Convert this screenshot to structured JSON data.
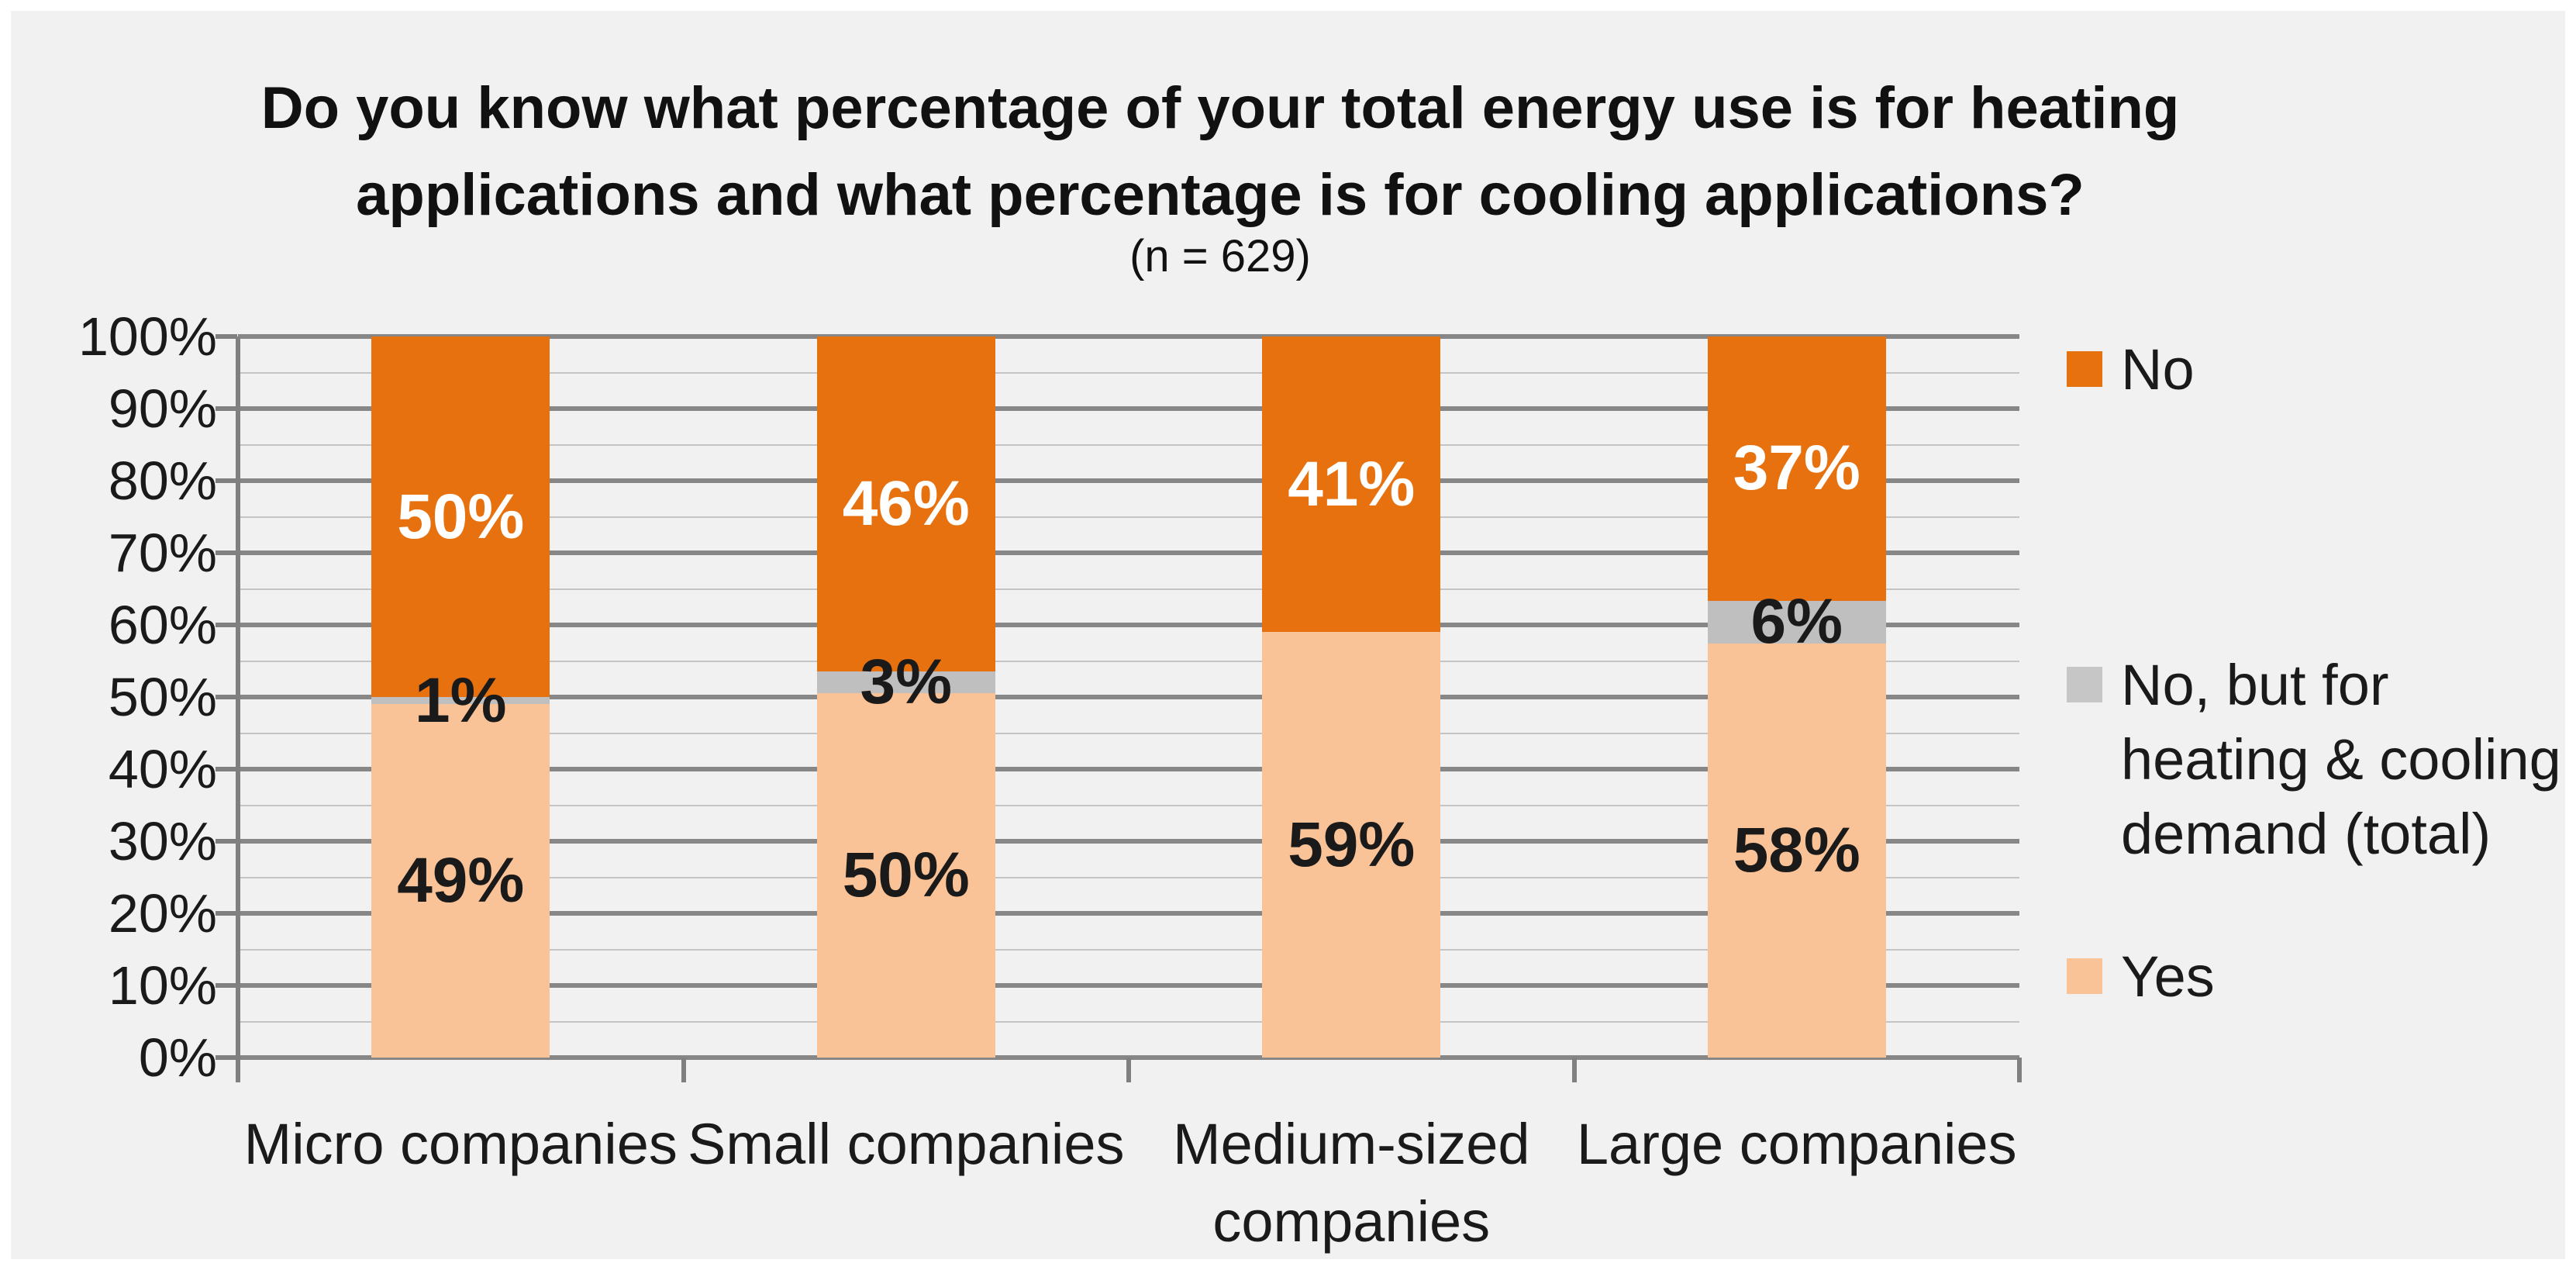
{
  "header": {
    "title_lines": [
      "Do you know what percentage of your total energy use is for heating",
      "applications and what percentage is for cooling applications?"
    ],
    "subtitle": "(n = 629)"
  },
  "chart_data": {
    "type": "bar",
    "stacked": true,
    "units": "percent",
    "title": "Do you know what percentage of your total energy use is for heating applications and what percentage is for cooling applications?",
    "subtitle": "(n = 629)",
    "n": 629,
    "categories": [
      "Micro companies",
      "Small companies",
      "Medium-sized companies",
      "Large companies"
    ],
    "series": [
      {
        "name": "Yes",
        "color": "#FAC397",
        "label_color": "#1a1a1a",
        "values": [
          49,
          50,
          59,
          58
        ]
      },
      {
        "name": "No, but for heating & cooling demand (total)",
        "color": "#BFBFBF",
        "label_color": "#1a1a1a",
        "values": [
          1,
          3,
          0,
          6
        ]
      },
      {
        "name": "No",
        "color": "#E8710F",
        "label_color": "#ffffff",
        "values": [
          50,
          46,
          41,
          37
        ]
      }
    ],
    "data_label_suffix": "%",
    "y_axis": {
      "min": 0,
      "max": 100,
      "major_step": 10,
      "minor_step": 5,
      "ticks": [
        "0%",
        "10%",
        "20%",
        "30%",
        "40%",
        "50%",
        "60%",
        "70%",
        "80%",
        "90%",
        "100%"
      ]
    },
    "grid": {
      "major": true,
      "minor": true
    },
    "legend": {
      "position": "right",
      "entries": [
        {
          "label": "No",
          "color": "#E8710F"
        },
        {
          "label": "No, but for heating & cooling demand (total)",
          "color": "#C6C6C6"
        },
        {
          "label": "Yes",
          "color": "#FAC397"
        }
      ]
    },
    "colors": {
      "canvas_background": "#f1f1f1",
      "page_background": "#ffffff",
      "major_gridline": "#878787",
      "minor_gridline": "#c4c4c4",
      "axis": "#808080",
      "text": "#1a1a1a"
    }
  }
}
